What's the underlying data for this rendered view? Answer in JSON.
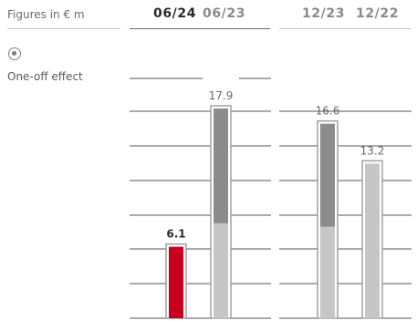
{
  "header": {
    "figures_label": "Figures in € m",
    "periods": [
      "06/24",
      "06/23",
      "12/23",
      "12/22"
    ]
  },
  "legend": {
    "items": [
      {
        "label": "One-off effect",
        "selected": true
      }
    ]
  },
  "colors": {
    "current": "#c8001e",
    "dark_segment": "#8c8c8c",
    "light_segment": "#c6c6c6",
    "outline": "#a0a0a0",
    "gridline": "#555555"
  },
  "chart_data": {
    "type": "bar",
    "categories": [
      "06/24",
      "06/23",
      "12/23",
      "12/22"
    ],
    "totals": [
      6.1,
      17.9,
      16.6,
      13.2
    ],
    "segments": [
      {
        "category": "06/24",
        "base": 6.1,
        "one_off": 0
      },
      {
        "category": "06/23",
        "base": 8.1,
        "one_off": 9.8
      },
      {
        "category": "12/23",
        "base": 7.8,
        "one_off": 8.8
      },
      {
        "category": "12/22",
        "base": 13.2,
        "one_off": 0
      }
    ],
    "data_labels": [
      "6.1",
      "17.9",
      "16.6",
      "13.2"
    ],
    "legend": "top-left",
    "grid": true,
    "ylim": [
      0,
      19
    ]
  }
}
